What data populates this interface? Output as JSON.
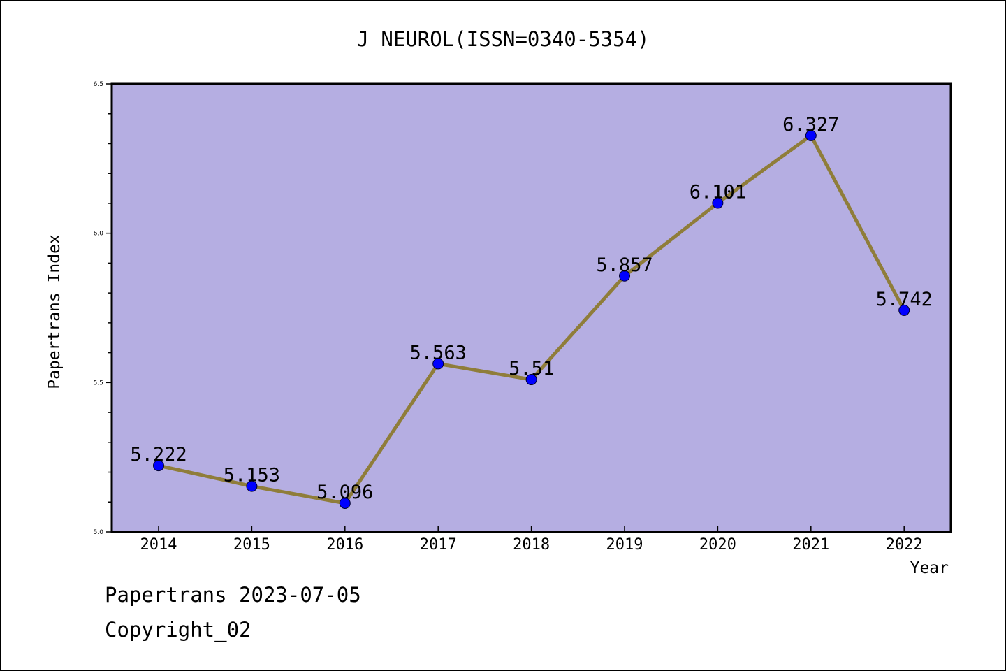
{
  "chart_data": {
    "type": "line",
    "title": "J NEUROL(ISSN=0340-5354)",
    "xlabel": "Year",
    "ylabel": "Papertrans Index",
    "categories": [
      "2014",
      "2015",
      "2016",
      "2017",
      "2018",
      "2019",
      "2020",
      "2021",
      "2022"
    ],
    "values": [
      5.222,
      5.153,
      5.096,
      5.563,
      5.51,
      5.857,
      6.101,
      6.327,
      5.742
    ],
    "data_labels": [
      "5.222",
      "5.153",
      "5.096",
      "5.563",
      "5.51",
      "5.857",
      "6.101",
      "6.327",
      "5.742"
    ],
    "ylim": [
      5.0,
      6.5
    ],
    "yticks": [
      "5.0",
      "5.5",
      "6.0",
      "6.5"
    ],
    "grid": false,
    "legend": "none",
    "colors": {
      "plot_background": "#b5aee2",
      "line": "#8f7d3a",
      "marker": "#0000ff"
    }
  },
  "footer": {
    "line1": "Papertrans 2023-07-05",
    "line2": "Copyright_02"
  }
}
